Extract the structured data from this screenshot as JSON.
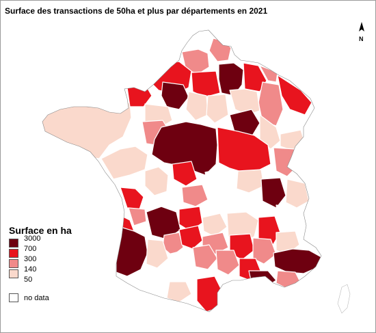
{
  "title": "Surface des transactions de 50ha et plus par départements en 2021",
  "north_label": "N",
  "legend": {
    "title": "Surface en ha",
    "breaks": [
      "3000",
      "700",
      "300",
      "140",
      "50"
    ],
    "classes": [
      {
        "name": "class-700-3000",
        "color": "#6e0010"
      },
      {
        "name": "class-300-700",
        "color": "#e8141e"
      },
      {
        "name": "class-140-300",
        "color": "#f08a8a"
      },
      {
        "name": "class-50-140",
        "color": "#fad9cc"
      },
      {
        "name": "class-no-data",
        "color": "#ffffff"
      }
    ],
    "no_data_label": "no data"
  },
  "colors": {
    "dark": "#6e0010",
    "red": "#e8141e",
    "salmon": "#f08a8a",
    "light": "#fad9cc",
    "none": "#ffffff",
    "border": "#ffffff"
  }
}
